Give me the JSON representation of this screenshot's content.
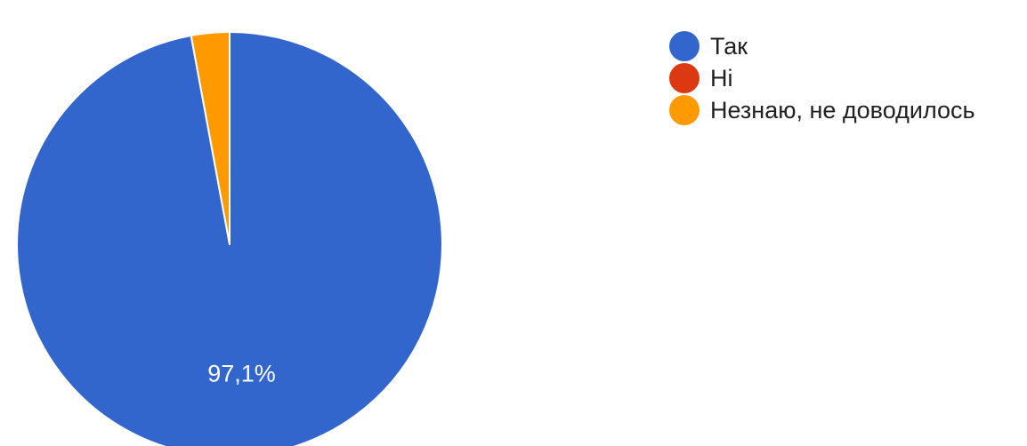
{
  "chart_data": {
    "type": "pie",
    "title": "",
    "series": [
      {
        "values": [
          97.1,
          0,
          2.9
        ]
      }
    ],
    "categories": [
      "Так",
      "Ні",
      "Незнаю, не доводилось"
    ],
    "colors": [
      "#3366cc",
      "#dc3912",
      "#ff9900"
    ],
    "data_labels": [
      "97,1%",
      "",
      ""
    ],
    "legend_position": "right",
    "start_angle_deg": 90,
    "direction": "clockwise"
  }
}
